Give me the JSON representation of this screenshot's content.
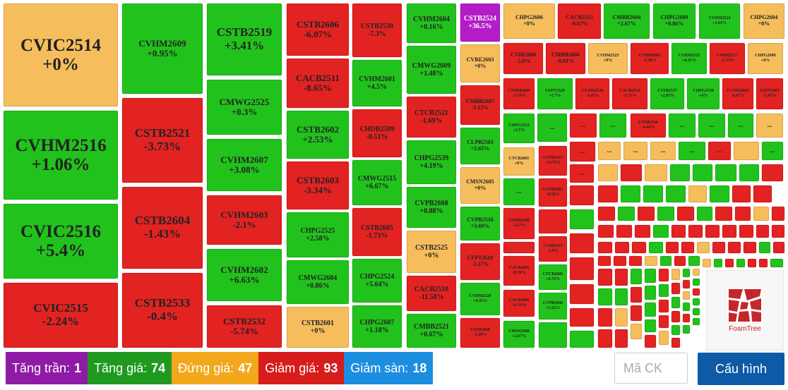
{
  "treemap": {
    "tiles": [
      {
        "symbol": "CVIC2514",
        "change": "+0%",
        "status": "flat"
      },
      {
        "symbol": "CVHM2516",
        "change": "+1.06%",
        "status": "up"
      },
      {
        "symbol": "CVIC2516",
        "change": "+5.4%",
        "status": "up"
      },
      {
        "symbol": "CVIC2515",
        "change": "-2.24%",
        "status": "down"
      },
      {
        "symbol": "CVHM2609",
        "change": "+0.95%",
        "status": "up"
      },
      {
        "symbol": "CSTB2521",
        "change": "-3.73%",
        "status": "down"
      },
      {
        "symbol": "CSTB2604",
        "change": "-1.43%",
        "status": "down"
      },
      {
        "symbol": "CSTB2533",
        "change": "-0.4%",
        "status": "down"
      },
      {
        "symbol": "CSTB2519",
        "change": "+3.41%",
        "status": "up"
      },
      {
        "symbol": "CMWG2525",
        "change": "+0.3%",
        "status": "up"
      },
      {
        "symbol": "CVHM2607",
        "change": "+3.08%",
        "status": "up"
      },
      {
        "symbol": "CVHM2603",
        "change": "-2.1%",
        "status": "down"
      },
      {
        "symbol": "CVHM2602",
        "change": "+6.63%",
        "status": "up"
      },
      {
        "symbol": "CSTB2532",
        "change": "-5.74%",
        "status": "down"
      },
      {
        "symbol": "CSTB2606",
        "change": "-6.07%",
        "status": "down"
      },
      {
        "symbol": "CACB2511",
        "change": "-8.65%",
        "status": "down"
      },
      {
        "symbol": "CSTB2602",
        "change": "+2.53%",
        "status": "up"
      },
      {
        "symbol": "CSTB2603",
        "change": "-3.34%",
        "status": "down"
      },
      {
        "symbol": "CHPG2525",
        "change": "+2.58%",
        "status": "up"
      },
      {
        "symbol": "CMWG2604",
        "change": "+0.86%",
        "status": "up"
      },
      {
        "symbol": "CSTB2601",
        "change": "+0%",
        "status": "flat"
      },
      {
        "symbol": "CSTB2530",
        "change": "-7.3%",
        "status": "down"
      },
      {
        "symbol": "CVHM2601",
        "change": "+4.5%",
        "status": "up"
      },
      {
        "symbol": "CHDB2509",
        "change": "-0.51%",
        "status": "down"
      },
      {
        "symbol": "CMWG2515",
        "change": "+6.67%",
        "status": "up"
      },
      {
        "symbol": "CSTB2605",
        "change": "-1.73%",
        "status": "down"
      },
      {
        "symbol": "CHPG2524",
        "change": "+5.64%",
        "status": "up"
      },
      {
        "symbol": "CHPG2607",
        "change": "+1.18%",
        "status": "up"
      },
      {
        "symbol": "CVHM2604",
        "change": "+0.16%",
        "status": "up"
      },
      {
        "symbol": "CMWG2609",
        "change": "+1.48%",
        "status": "up"
      },
      {
        "symbol": "CTCB2521",
        "change": "-1.69%",
        "status": "down"
      },
      {
        "symbol": "CHPG2539",
        "change": "+4.19%",
        "status": "up"
      },
      {
        "symbol": "CVPB2608",
        "change": "+0.88%",
        "status": "up"
      },
      {
        "symbol": "CSTB2525",
        "change": "+0%",
        "status": "flat"
      },
      {
        "symbol": "CACB2510",
        "change": "-11.58%",
        "status": "down"
      },
      {
        "symbol": "CMBB2521",
        "change": "+0.67%",
        "status": "up"
      },
      {
        "symbol": "CSTB2524",
        "change": "+36.5%",
        "status": "ceil"
      },
      {
        "symbol": "CVRE2603",
        "change": "+0%",
        "status": "flat"
      },
      {
        "symbol": "CMBB2607",
        "change": "-1.15%",
        "status": "down"
      },
      {
        "symbol": "CLPB2503",
        "change": "+2.65%",
        "status": "up"
      },
      {
        "symbol": "CMSN2605",
        "change": "+0%",
        "status": "flat"
      },
      {
        "symbol": "CVPB2516",
        "change": "+3.69%",
        "status": "up"
      },
      {
        "symbol": "CFPT2610",
        "change": "-3.17%",
        "status": "down"
      },
      {
        "symbol": "CVHM2520",
        "change": "+0.35%",
        "status": "up"
      },
      {
        "symbol": "CSTB2608",
        "change": "-1.39%",
        "status": "down"
      },
      {
        "symbol": "CHPG2606",
        "change": "+0%",
        "status": "flat"
      },
      {
        "symbol": "CACB2515",
        "change": "-0.67%",
        "status": "down"
      },
      {
        "symbol": "CMBB2604",
        "change": "+2.67%",
        "status": "up"
      },
      {
        "symbol": "CHPG2609",
        "change": "+0.86%",
        "status": "up"
      },
      {
        "symbol": "CVHM2524",
        "change": "+1.83%",
        "status": "up"
      },
      {
        "symbol": "CHPG2604",
        "change": "+0%",
        "status": "flat"
      },
      {
        "symbol": "CVIB2604",
        "change": "-2.6%",
        "status": "down"
      },
      {
        "symbol": "CMBB2606",
        "change": "-0.81%",
        "status": "down"
      },
      {
        "symbol": "CVHM2523",
        "change": "+0%",
        "status": "flat"
      },
      {
        "symbol": "CVHM2605",
        "change": "-5.38%",
        "status": "down"
      },
      {
        "symbol": "CVHM2525",
        "change": "+8.31%",
        "status": "up"
      },
      {
        "symbol": "CMBB2517",
        "change": "-1.75%",
        "status": "down"
      },
      {
        "symbol": "CHPG2608",
        "change": "+0%",
        "status": "flat"
      },
      {
        "symbol": "CVHM2604",
        "change": "-3.19%",
        "status": "down"
      },
      {
        "symbol": "CFPT2529",
        "change": "+5.7%",
        "status": "up"
      },
      {
        "symbol": "CVNM2520",
        "change": "-3.43%",
        "status": "down"
      },
      {
        "symbol": "CACB2514",
        "change": "-5.75%",
        "status": "down"
      },
      {
        "symbol": "CSTB2537",
        "change": "+2.65%",
        "status": "up"
      },
      {
        "symbol": "CHPG2538",
        "change": "+4%",
        "status": "up"
      },
      {
        "symbol": "CVNM2603",
        "change": "-6.67%",
        "status": "down"
      },
      {
        "symbol": "CFPT2603",
        "change": "-1.45%",
        "status": "down"
      },
      {
        "symbol": "CHPG2523",
        "change": "+2.5%",
        "status": "up"
      },
      {
        "symbol": "CTCB2601",
        "change": "+0%",
        "status": "flat"
      },
      {
        "symbol": "CMDB2508",
        "change": "-2.27%",
        "status": "down"
      },
      {
        "symbol": "CACB2605",
        "change": "-8.39%",
        "status": "down"
      },
      {
        "symbol": "CACB2606",
        "change": "-14.14%",
        "status": "down"
      },
      {
        "symbol": "CMSN2608",
        "change": "+2.67%",
        "status": "up"
      },
      {
        "symbol": "CSTB2527",
        "change": "-14.79%",
        "status": "down"
      },
      {
        "symbol": "CLPB2602",
        "change": "-8.58%",
        "status": "down"
      },
      {
        "symbol": "CVIB2513",
        "change": "-2.9%",
        "status": "down"
      },
      {
        "symbol": "CTCB2605",
        "change": "+6.74%",
        "status": "up"
      },
      {
        "symbol": "CVPB2606",
        "change": "+1.22%",
        "status": "up"
      },
      {
        "symbol": "CSTB2536",
        "change": "-4.44%",
        "status": "down"
      }
    ]
  },
  "legend": {
    "ceiling": {
      "label": "Tăng trần:",
      "count": "1",
      "color": "#8f1aa6"
    },
    "up": {
      "label": "Tăng giá:",
      "count": "74",
      "color": "#1f9a1f"
    },
    "flat": {
      "label": "Đứng giá:",
      "count": "47",
      "color": "#f2a71d"
    },
    "down": {
      "label": "Giảm giá:",
      "count": "93",
      "color": "#d71c1c"
    },
    "floor": {
      "label": "Giảm sàn:",
      "count": "18",
      "color": "#1b8ee0"
    }
  },
  "search": {
    "placeholder": "Mã CK"
  },
  "config_button": {
    "label": "Cấu hình"
  },
  "badge": {
    "brand": "FoamTree"
  }
}
